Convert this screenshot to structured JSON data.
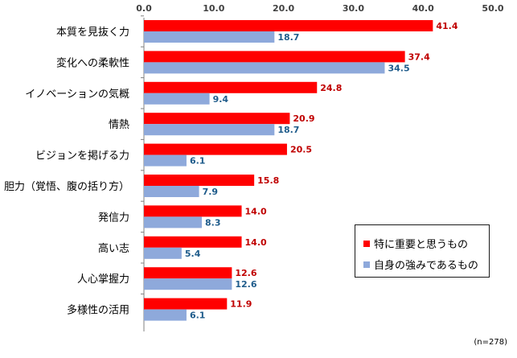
{
  "chart_data": {
    "type": "bar",
    "orientation": "horizontal",
    "categories": [
      "本質を見抜く力",
      "変化への柔軟性",
      "イノベーションの気概",
      "情熱",
      "ビジョンを掲げる力",
      "胆力（覚悟、腹の括り方）",
      "発信力",
      "高い志",
      "人心掌握力",
      "多様性の活用"
    ],
    "series": [
      {
        "name": "特に重要と思うもの",
        "color": "#ff0000",
        "label_color": "#c00000",
        "values": [
          41.4,
          37.4,
          24.8,
          20.9,
          20.5,
          15.8,
          14.0,
          14.0,
          12.6,
          11.9
        ],
        "labels": [
          "41.4",
          "37.4",
          "24.8",
          "20.9",
          "20.5",
          "15.8",
          "14.0",
          "14.0",
          "12.6",
          "11.9"
        ]
      },
      {
        "name": "自身の強みであるもの",
        "color": "#8ea9db",
        "label_color": "#1f5c8b",
        "values": [
          18.7,
          34.5,
          9.4,
          18.7,
          6.1,
          7.9,
          8.3,
          5.4,
          12.6,
          6.1
        ],
        "labels": [
          "18.7",
          "34.5",
          "9.4",
          "18.7",
          "6.1",
          "7.9",
          "8.3",
          "5.4",
          "12.6",
          "6.1"
        ]
      }
    ],
    "xlim": [
      0,
      50
    ],
    "ticks": [
      "0.0",
      "10.0",
      "20.0",
      "30.0",
      "40.0",
      "50.0"
    ],
    "tick_values": [
      0,
      10,
      20,
      30,
      40,
      50
    ],
    "grid": false,
    "legend_position": "bottom-right",
    "note": "(n=278)"
  }
}
